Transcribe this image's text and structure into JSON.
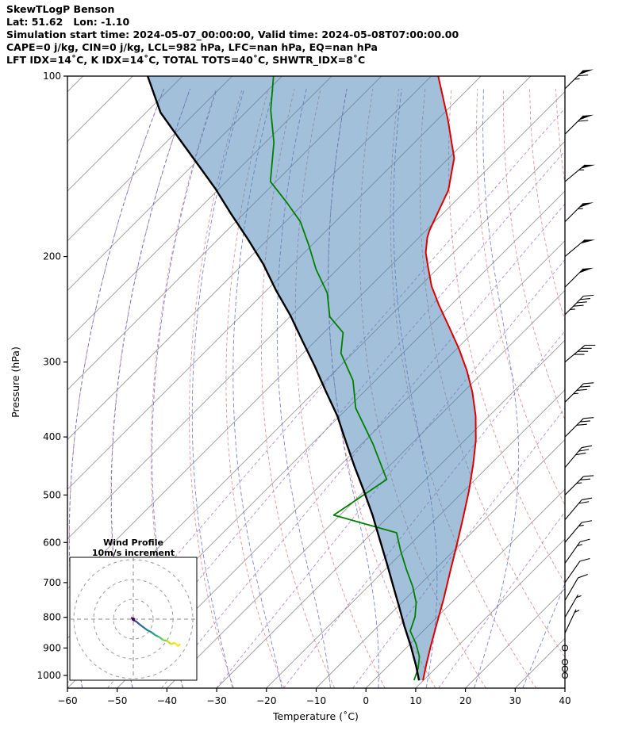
{
  "header": {
    "title": "SkewTLogP Benson",
    "line_location": "Lat: 51.62   Lon: -1.10",
    "line_times": "Simulation start time: 2024-05-07_00:00:00, Valid time: 2024-05-08T07:00:00.00",
    "line_indices1": "CAPE=0 j/kg, CIN=0 j/kg, LCL=982 hPa, LFC=nan hPa, EQ=nan hPa",
    "line_indices2": "LFT IDX=14˚C, K IDX=14˚C, TOTAL TOTS=40˚C, SHWTR_IDX=8˚C"
  },
  "axes": {
    "x_label": "Temperature (˚C)",
    "y_label": "Pressure (hPa)",
    "x_ticks": [
      {
        "v": -60,
        "label": "−60"
      },
      {
        "v": -50,
        "label": "−50"
      },
      {
        "v": -40,
        "label": "−40"
      },
      {
        "v": -30,
        "label": "−30"
      },
      {
        "v": -20,
        "label": "−20"
      },
      {
        "v": -10,
        "label": "−10"
      },
      {
        "v": 0,
        "label": "0"
      },
      {
        "v": 10,
        "label": "10"
      },
      {
        "v": 20,
        "label": "20"
      },
      {
        "v": 30,
        "label": "30"
      },
      {
        "v": 40,
        "label": "40"
      }
    ],
    "y_ticks": [
      {
        "v": 100,
        "label": "100"
      },
      {
        "v": 200,
        "label": "200"
      },
      {
        "v": 300,
        "label": "300"
      },
      {
        "v": 400,
        "label": "400"
      },
      {
        "v": 500,
        "label": "500"
      },
      {
        "v": 600,
        "label": "600"
      },
      {
        "v": 700,
        "label": "700"
      },
      {
        "v": 800,
        "label": "800"
      },
      {
        "v": 900,
        "label": "900"
      },
      {
        "v": 1000,
        "label": "1000"
      }
    ]
  },
  "chart_data": {
    "type": "skewt-logp",
    "title": "SkewTLogP Benson",
    "xlim": [
      -60,
      40
    ],
    "pressure_lim": [
      100,
      1050
    ],
    "skew_deg": 45,
    "grid": "skewed isotherms, dry/moist adiabats, mixing-ratio lines; no horizontal gridlines",
    "location": {
      "lat": 51.62,
      "lon": -1.1
    },
    "times": {
      "simulation_start": "2024-05-07_00:00:00",
      "valid": "2024-05-08T07:00:00.00"
    },
    "indices": {
      "cape_jkg": 0,
      "cin_jkg": 0,
      "lcl_hpa": 982,
      "lfc_hpa": "nan",
      "eq_hpa": "nan",
      "lifted_index_c": 14,
      "k_index_c": 14,
      "total_totals_c": 40,
      "showalter_index_c": 8
    },
    "temperature_profile": {
      "pressure_hpa": [
        1019,
        964,
        894,
        816,
        744,
        673,
        611,
        549,
        493,
        444,
        405,
        369,
        337,
        310,
        285,
        262,
        241,
        224,
        209,
        197,
        186,
        181,
        155,
        137,
        118,
        100
      ],
      "temp_c": [
        9.9,
        7.6,
        4.6,
        1.1,
        -2.4,
        -6.4,
        -10.2,
        -14.5,
        -18.9,
        -23.5,
        -27.8,
        -32.7,
        -38.1,
        -43.6,
        -49.6,
        -56.0,
        -62.4,
        -67.7,
        -72.0,
        -75.6,
        -78.3,
        -79.3,
        -83.6,
        -88.9,
        -98.0,
        -108.6
      ]
    },
    "dewpoint_profile": {
      "pressure_hpa": [
        1019,
        973,
        930,
        885,
        843,
        798,
        756,
        711,
        665,
        620,
        578,
        540,
        471,
        411,
        358,
        322,
        290,
        268,
        252,
        230,
        210,
        192,
        175,
        162,
        150,
        129,
        114,
        100
      ],
      "dewpoint_c": [
        8.1,
        6.5,
        4.4,
        1.1,
        -2.6,
        -4.5,
        -7.1,
        -11.0,
        -15.8,
        -20.6,
        -25.1,
        -41.3,
        -37.8,
        -47.7,
        -58.4,
        -64.5,
        -72.4,
        -76.1,
        -82.0,
        -87.3,
        -94.3,
        -100.4,
        -107.0,
        -113.9,
        -121.1,
        -128.3,
        -135.4,
        -141.7
      ]
    },
    "parcel_profile": {
      "pressure_hpa": [
        1019,
        964,
        894,
        828,
        767,
        711,
        653,
        596,
        540,
        490,
        448,
        408,
        369,
        336,
        305,
        277,
        251,
        228,
        206,
        187,
        170,
        154,
        140,
        127,
        115,
        100
      ],
      "temp_c": [
        9.1,
        5.6,
        0.6,
        -4.7,
        -9.8,
        -14.9,
        -20.6,
        -26.8,
        -33.5,
        -40.4,
        -46.9,
        -53.5,
        -60.5,
        -67.7,
        -75.0,
        -82.5,
        -90.1,
        -98.0,
        -105.9,
        -114.1,
        -122.4,
        -130.8,
        -139.4,
        -148.2,
        -157.1,
        -167.0
      ]
    },
    "wind_barbs_kt": [
      {
        "p": 105,
        "spd": 65,
        "dir": 225
      },
      {
        "p": 125,
        "spd": 60,
        "dir": 225
      },
      {
        "p": 150,
        "spd": 55,
        "dir": 230
      },
      {
        "p": 175,
        "spd": 55,
        "dir": 225
      },
      {
        "p": 200,
        "spd": 50,
        "dir": 230
      },
      {
        "p": 225,
        "spd": 50,
        "dir": 225
      },
      {
        "p": 250,
        "spd": 45,
        "dir": 225
      },
      {
        "p": 300,
        "spd": 40,
        "dir": 230
      },
      {
        "p": 350,
        "spd": 35,
        "dir": 225
      },
      {
        "p": 400,
        "spd": 30,
        "dir": 225
      },
      {
        "p": 450,
        "spd": 30,
        "dir": 220
      },
      {
        "p": 500,
        "spd": 25,
        "dir": 225
      },
      {
        "p": 550,
        "spd": 20,
        "dir": 220
      },
      {
        "p": 600,
        "spd": 15,
        "dir": 220
      },
      {
        "p": 650,
        "spd": 15,
        "dir": 215
      },
      {
        "p": 700,
        "spd": 10,
        "dir": 215
      },
      {
        "p": 750,
        "spd": 10,
        "dir": 210
      },
      {
        "p": 800,
        "spd": 5,
        "dir": 210
      },
      {
        "p": 850,
        "spd": 5,
        "dir": 205
      },
      {
        "p": 900,
        "spd": 0,
        "dir": 0
      },
      {
        "p": 950,
        "spd": 0,
        "dir": 0
      },
      {
        "p": 975,
        "spd": 0,
        "dir": 0
      },
      {
        "p": 1000,
        "spd": 0,
        "dir": 0
      }
    ],
    "background": {
      "isotherms_c": {
        "min": -180,
        "max": 40,
        "step": 10
      },
      "dry_adiabats_theta_c": [
        -60,
        -50,
        -40,
        -30,
        -20,
        -10,
        0,
        10,
        20,
        30,
        40,
        50,
        60,
        70,
        80,
        90,
        100
      ],
      "moist_adiabats_thetaw_c": [
        -60,
        -50,
        -40,
        -30,
        -20,
        -10,
        0,
        10,
        20,
        30,
        40
      ],
      "mixing_ratio_gkg": [
        0.01,
        0.03,
        0.1,
        0.3,
        1,
        3,
        10
      ]
    },
    "colors": {
      "temperature": "#dd0000",
      "dewpoint": "#008000",
      "parcel": "#000000",
      "shade": "#4682b4",
      "isotherm": "#999999",
      "dry_adiabat": "#e08080",
      "moist_adiabat": "#4a5fd0",
      "mixing_ratio": "#a86fc6",
      "barb": "#000000"
    }
  },
  "hodograph": {
    "title_line1": "Wind Profile",
    "title_line2": "10m/s increment",
    "rings_mps": [
      10,
      20,
      30
    ],
    "ring_step_mps": 10,
    "trace_uv_mps": [
      {
        "u": 0.0,
        "v": 0.0,
        "c": "#440154"
      },
      {
        "u": -0.8,
        "v": 0.6,
        "c": "#46024e"
      },
      {
        "u": 0.2,
        "v": -0.6,
        "c": "#471d6c"
      },
      {
        "u": 1.5,
        "v": -1.2,
        "c": "#453781"
      },
      {
        "u": 3.0,
        "v": -2.5,
        "c": "#3f4d8a"
      },
      {
        "u": 5.0,
        "v": -4.0,
        "c": "#33608d"
      },
      {
        "u": 7.0,
        "v": -5.5,
        "c": "#2b748e"
      },
      {
        "u": 9.0,
        "v": -6.5,
        "c": "#24878e"
      },
      {
        "u": 11.0,
        "v": -8.0,
        "c": "#1f9a8a"
      },
      {
        "u": 13.0,
        "v": -9.0,
        "c": "#2ab07f"
      },
      {
        "u": 15.0,
        "v": -10.5,
        "c": "#51c56a"
      },
      {
        "u": 17.0,
        "v": -11.0,
        "c": "#85d54a"
      },
      {
        "u": 19.0,
        "v": -12.5,
        "c": "#bddf26"
      },
      {
        "u": 21.0,
        "v": -12.0,
        "c": "#dfe318"
      },
      {
        "u": 22.5,
        "v": -13.5,
        "c": "#fde725"
      },
      {
        "u": 23.5,
        "v": -12.8,
        "c": "#fde725"
      }
    ]
  }
}
